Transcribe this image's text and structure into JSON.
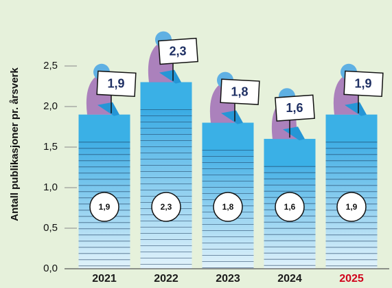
{
  "chart_data": {
    "type": "bar",
    "y_label": "Antall publikasjoner pr. årsverk",
    "categories": [
      "2021",
      "2022",
      "2023",
      "2024",
      "2025"
    ],
    "category_colors": [
      "#1a1a1a",
      "#1a1a1a",
      "#1a1a1a",
      "#1a1a1a",
      "#d0021b"
    ],
    "values": [
      1.9,
      2.3,
      1.8,
      1.6,
      1.9
    ],
    "value_labels": [
      "1,9",
      "2,3",
      "1,8",
      "1,6",
      "1,9"
    ],
    "color": "#3ab0e6",
    "ylim": [
      0,
      2.5
    ],
    "yticks": [
      {
        "value": 0,
        "label": "0,0"
      },
      {
        "value": 0.5,
        "label": "0,5"
      },
      {
        "value": 1,
        "label": "1,0"
      },
      {
        "value": 1.5,
        "label": "1,5"
      },
      {
        "value": 2,
        "label": "2,0"
      },
      {
        "value": 2.5,
        "label": "2,5"
      }
    ]
  }
}
